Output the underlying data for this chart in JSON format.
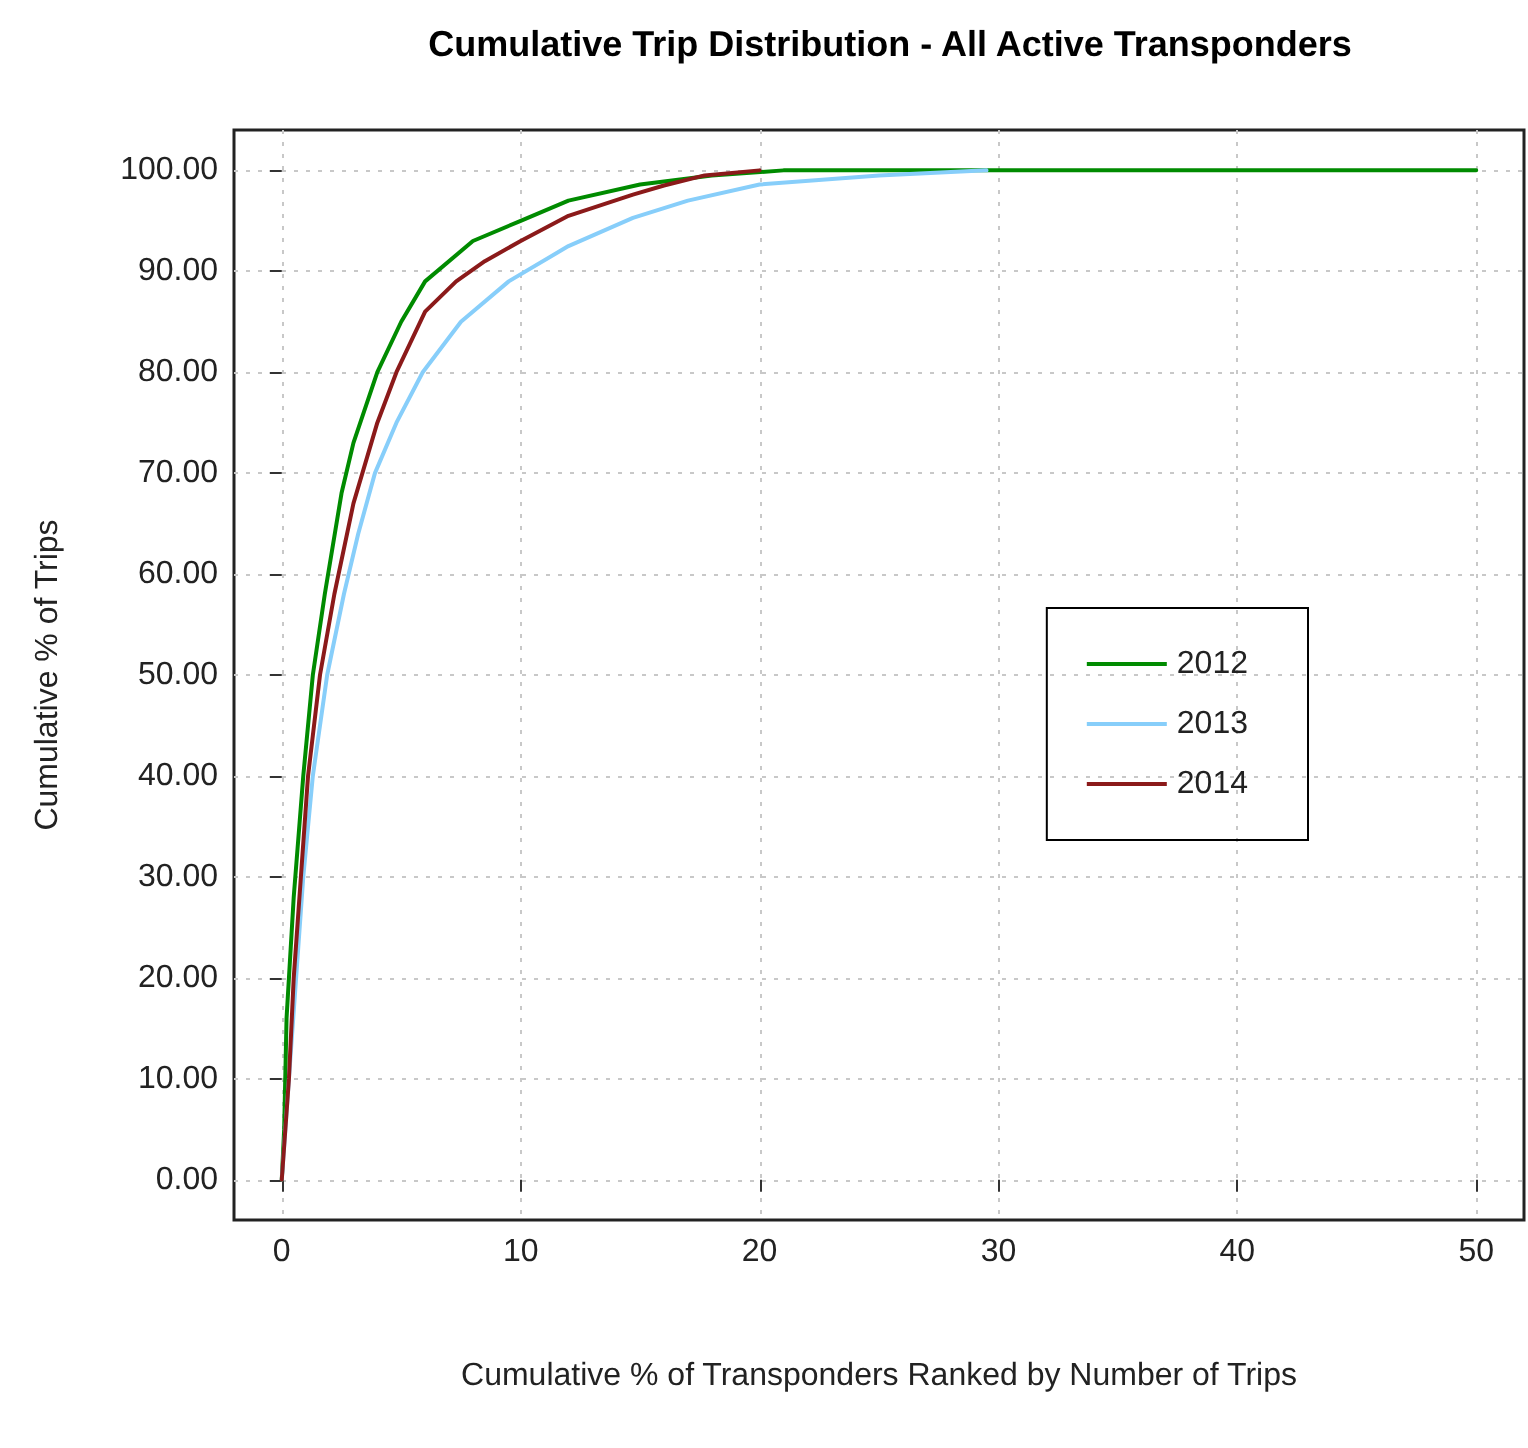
{
  "chart_data": {
    "type": "line",
    "title": "Cumulative Trip Distribution - All Active Transponders",
    "xlabel": "Cumulative % of Transponders Ranked by Number of Trips",
    "ylabel": "Cumulative % of Trips",
    "xlim": [
      -2,
      52
    ],
    "xticks": [
      0,
      10,
      20,
      30,
      40,
      50
    ],
    "ylim": [
      -4,
      104
    ],
    "yticks": [
      {
        "value": 0,
        "label": "0.00"
      },
      {
        "value": 10,
        "label": "10.00"
      },
      {
        "value": 20,
        "label": "20.00"
      },
      {
        "value": 30,
        "label": "30.00"
      },
      {
        "value": 40,
        "label": "40.00"
      },
      {
        "value": 50,
        "label": "50.00"
      },
      {
        "value": 60,
        "label": "60.00"
      },
      {
        "value": 70,
        "label": "70.00"
      },
      {
        "value": 80,
        "label": "80.00"
      },
      {
        "value": 90,
        "label": "90.00"
      },
      {
        "value": 100,
        "label": "100.00"
      }
    ],
    "grid": true,
    "legend": "right",
    "marker": "none",
    "line_style": "solid",
    "series": [
      {
        "name": "2012",
        "color": "#008b00",
        "x": [
          0,
          0.1,
          0.2,
          0.5,
          0.9,
          1.3,
          1.8,
          2.5,
          3,
          4,
          5,
          6,
          8,
          10,
          12,
          15,
          18,
          21,
          50
        ],
        "values": [
          0,
          5,
          16,
          28,
          40,
          50,
          58,
          68,
          73,
          80,
          85,
          89,
          93,
          95,
          97,
          98.6,
          99.5,
          100,
          100
        ]
      },
      {
        "name": "2013",
        "color": "#87cefa",
        "x": [
          0,
          0.3,
          0.6,
          0.9,
          1.3,
          1.9,
          2.6,
          3.2,
          3.9,
          4.8,
          5.9,
          7.5,
          9.5,
          12,
          14.7,
          17,
          20,
          25,
          29.5
        ],
        "values": [
          0,
          10,
          20,
          30,
          40,
          50,
          58,
          64,
          70,
          75,
          80,
          85,
          89,
          92.5,
          95.3,
          97,
          98.6,
          99.5,
          100
        ]
      },
      {
        "name": "2014",
        "color": "#8b1a1a",
        "x": [
          0,
          0.3,
          0.5,
          0.8,
          1.1,
          1.6,
          2.2,
          3,
          4,
          4.8,
          6,
          7.3,
          8.5,
          10,
          12,
          14.7,
          16,
          17.7,
          20
        ],
        "values": [
          0,
          10,
          20,
          30,
          40,
          50,
          58,
          67,
          75,
          80,
          86,
          89,
          91,
          93,
          95.5,
          97.6,
          98.5,
          99.5,
          100
        ]
      }
    ]
  }
}
